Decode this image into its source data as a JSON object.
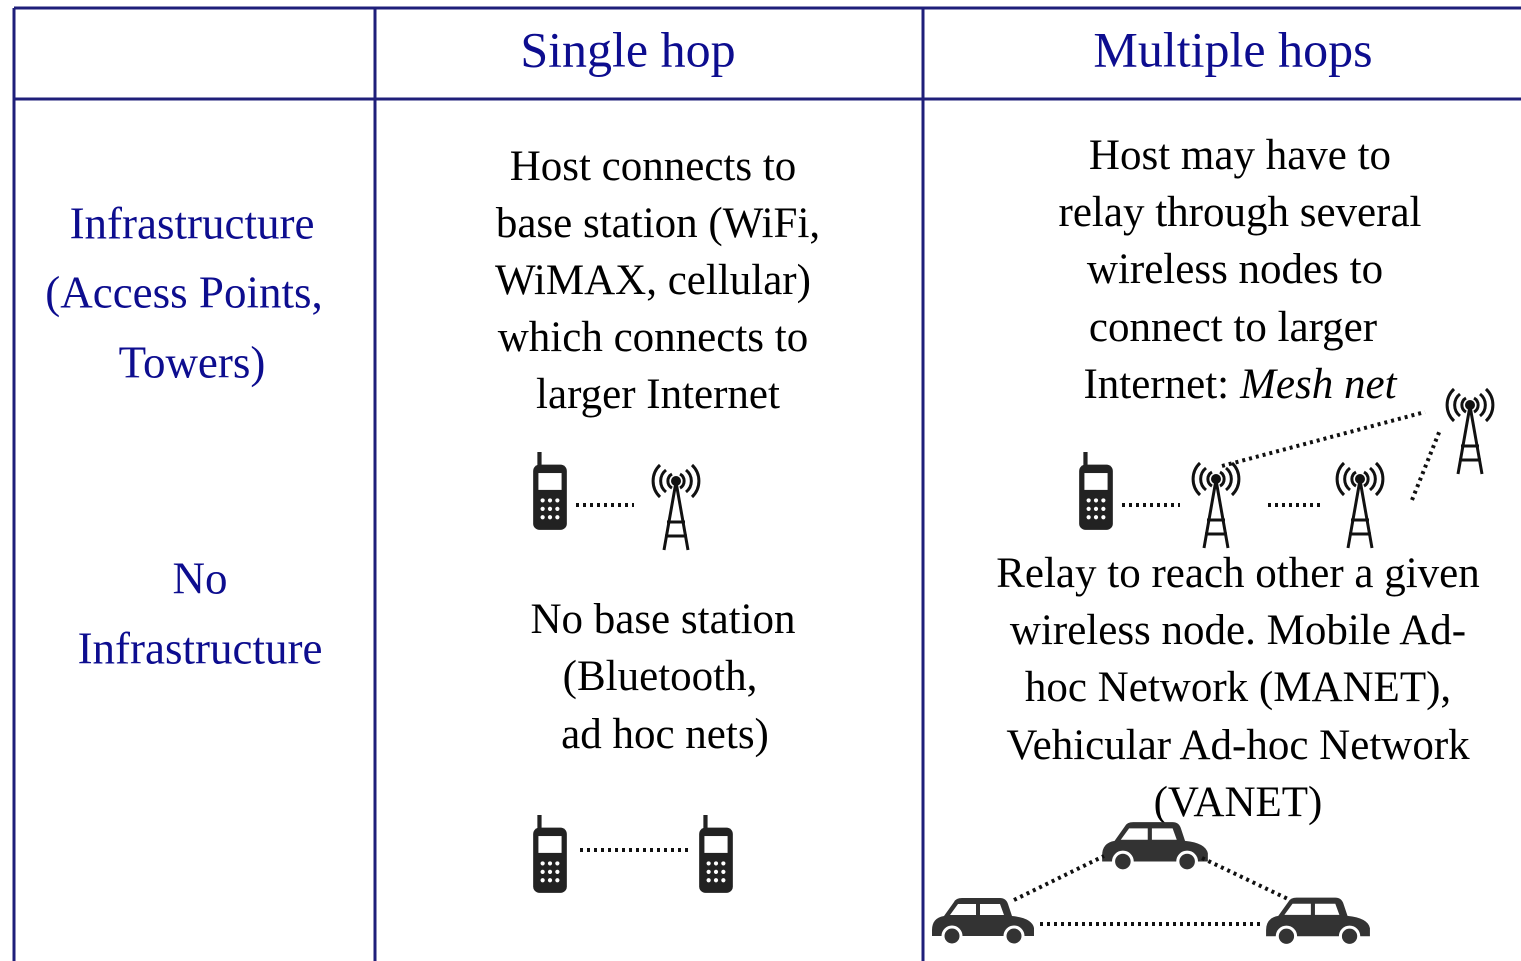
{
  "table": {
    "headers": [
      "Single hop",
      "Multiple hops"
    ],
    "rows": [
      {
        "label": [
          "Infrastructure",
          "(Access Points,",
          "Towers)"
        ],
        "single": [
          "Host connects to",
          "base station (WiFi,",
          "WiMAX, cellular)",
          "which connects to",
          "larger Internet"
        ],
        "multiple": [
          "Host may have to",
          "relay through several",
          "wireless nodes to",
          "connect to larger"
        ],
        "multiple_tail": "Internet:",
        "multiple_emphasis": "Mesh net"
      },
      {
        "label": [
          "No",
          "Infrastructure"
        ],
        "single": [
          "No base station",
          "(Bluetooth,",
          "ad hoc nets)"
        ],
        "multiple": [
          "Relay to reach other a given",
          "wireless node. Mobile Ad-",
          "hoc Network (MANET),",
          "Vehicular Ad-hoc Network",
          "(VANET)"
        ]
      }
    ]
  }
}
